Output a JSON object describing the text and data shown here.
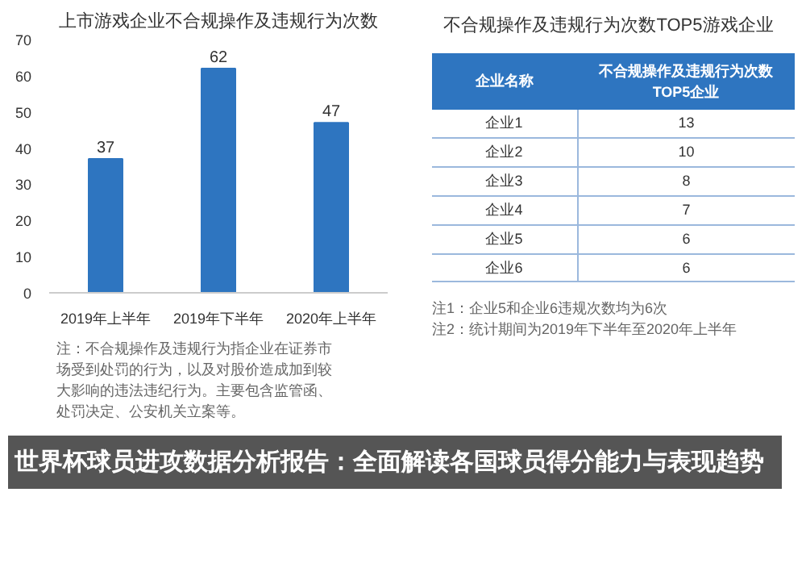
{
  "chart_data": [
    {
      "type": "bar",
      "title": "上市游戏企业不合规操作及违规行为次数",
      "categories": [
        "2019年上半年",
        "2019年下半年",
        "2020年上半年"
      ],
      "values": [
        37,
        62,
        47
      ],
      "color": "#2e75c0",
      "ylim": [
        0,
        70
      ],
      "yticks": [
        0,
        10,
        20,
        30,
        40,
        50,
        60,
        70
      ],
      "data_labels": true,
      "grid": false,
      "annotations": [
        "注：不合规操作及违规行为指企业在证券市场受到处罚的行为，以及对股价造成加到较大影响的违法违纪行为。主要包含监管函、处罚决定、公安机关立案等。"
      ]
    },
    {
      "type": "other",
      "title": "不合规操作及违规行为次数TOP5游戏企业",
      "xlabel": "企业名称",
      "ylabel": "不合规操作及违规行为次数TOP5企业",
      "categories": [
        "企业1",
        "企业2",
        "企业3",
        "企业4",
        "企业5",
        "企业6"
      ],
      "values": [
        13,
        10,
        8,
        7,
        6,
        6
      ],
      "color": "#2e75c0",
      "data_labels": true,
      "annotations": [
        "注1：企业5和企业6违规次数均为6次",
        "注2：统计期间为2019年下半年至2020年上半年"
      ]
    },
    {
      "type": "other",
      "title": "世界杯球员进攻数据分析报告：全面解读各国球员得分能力与表现趋势"
    }
  ]
}
